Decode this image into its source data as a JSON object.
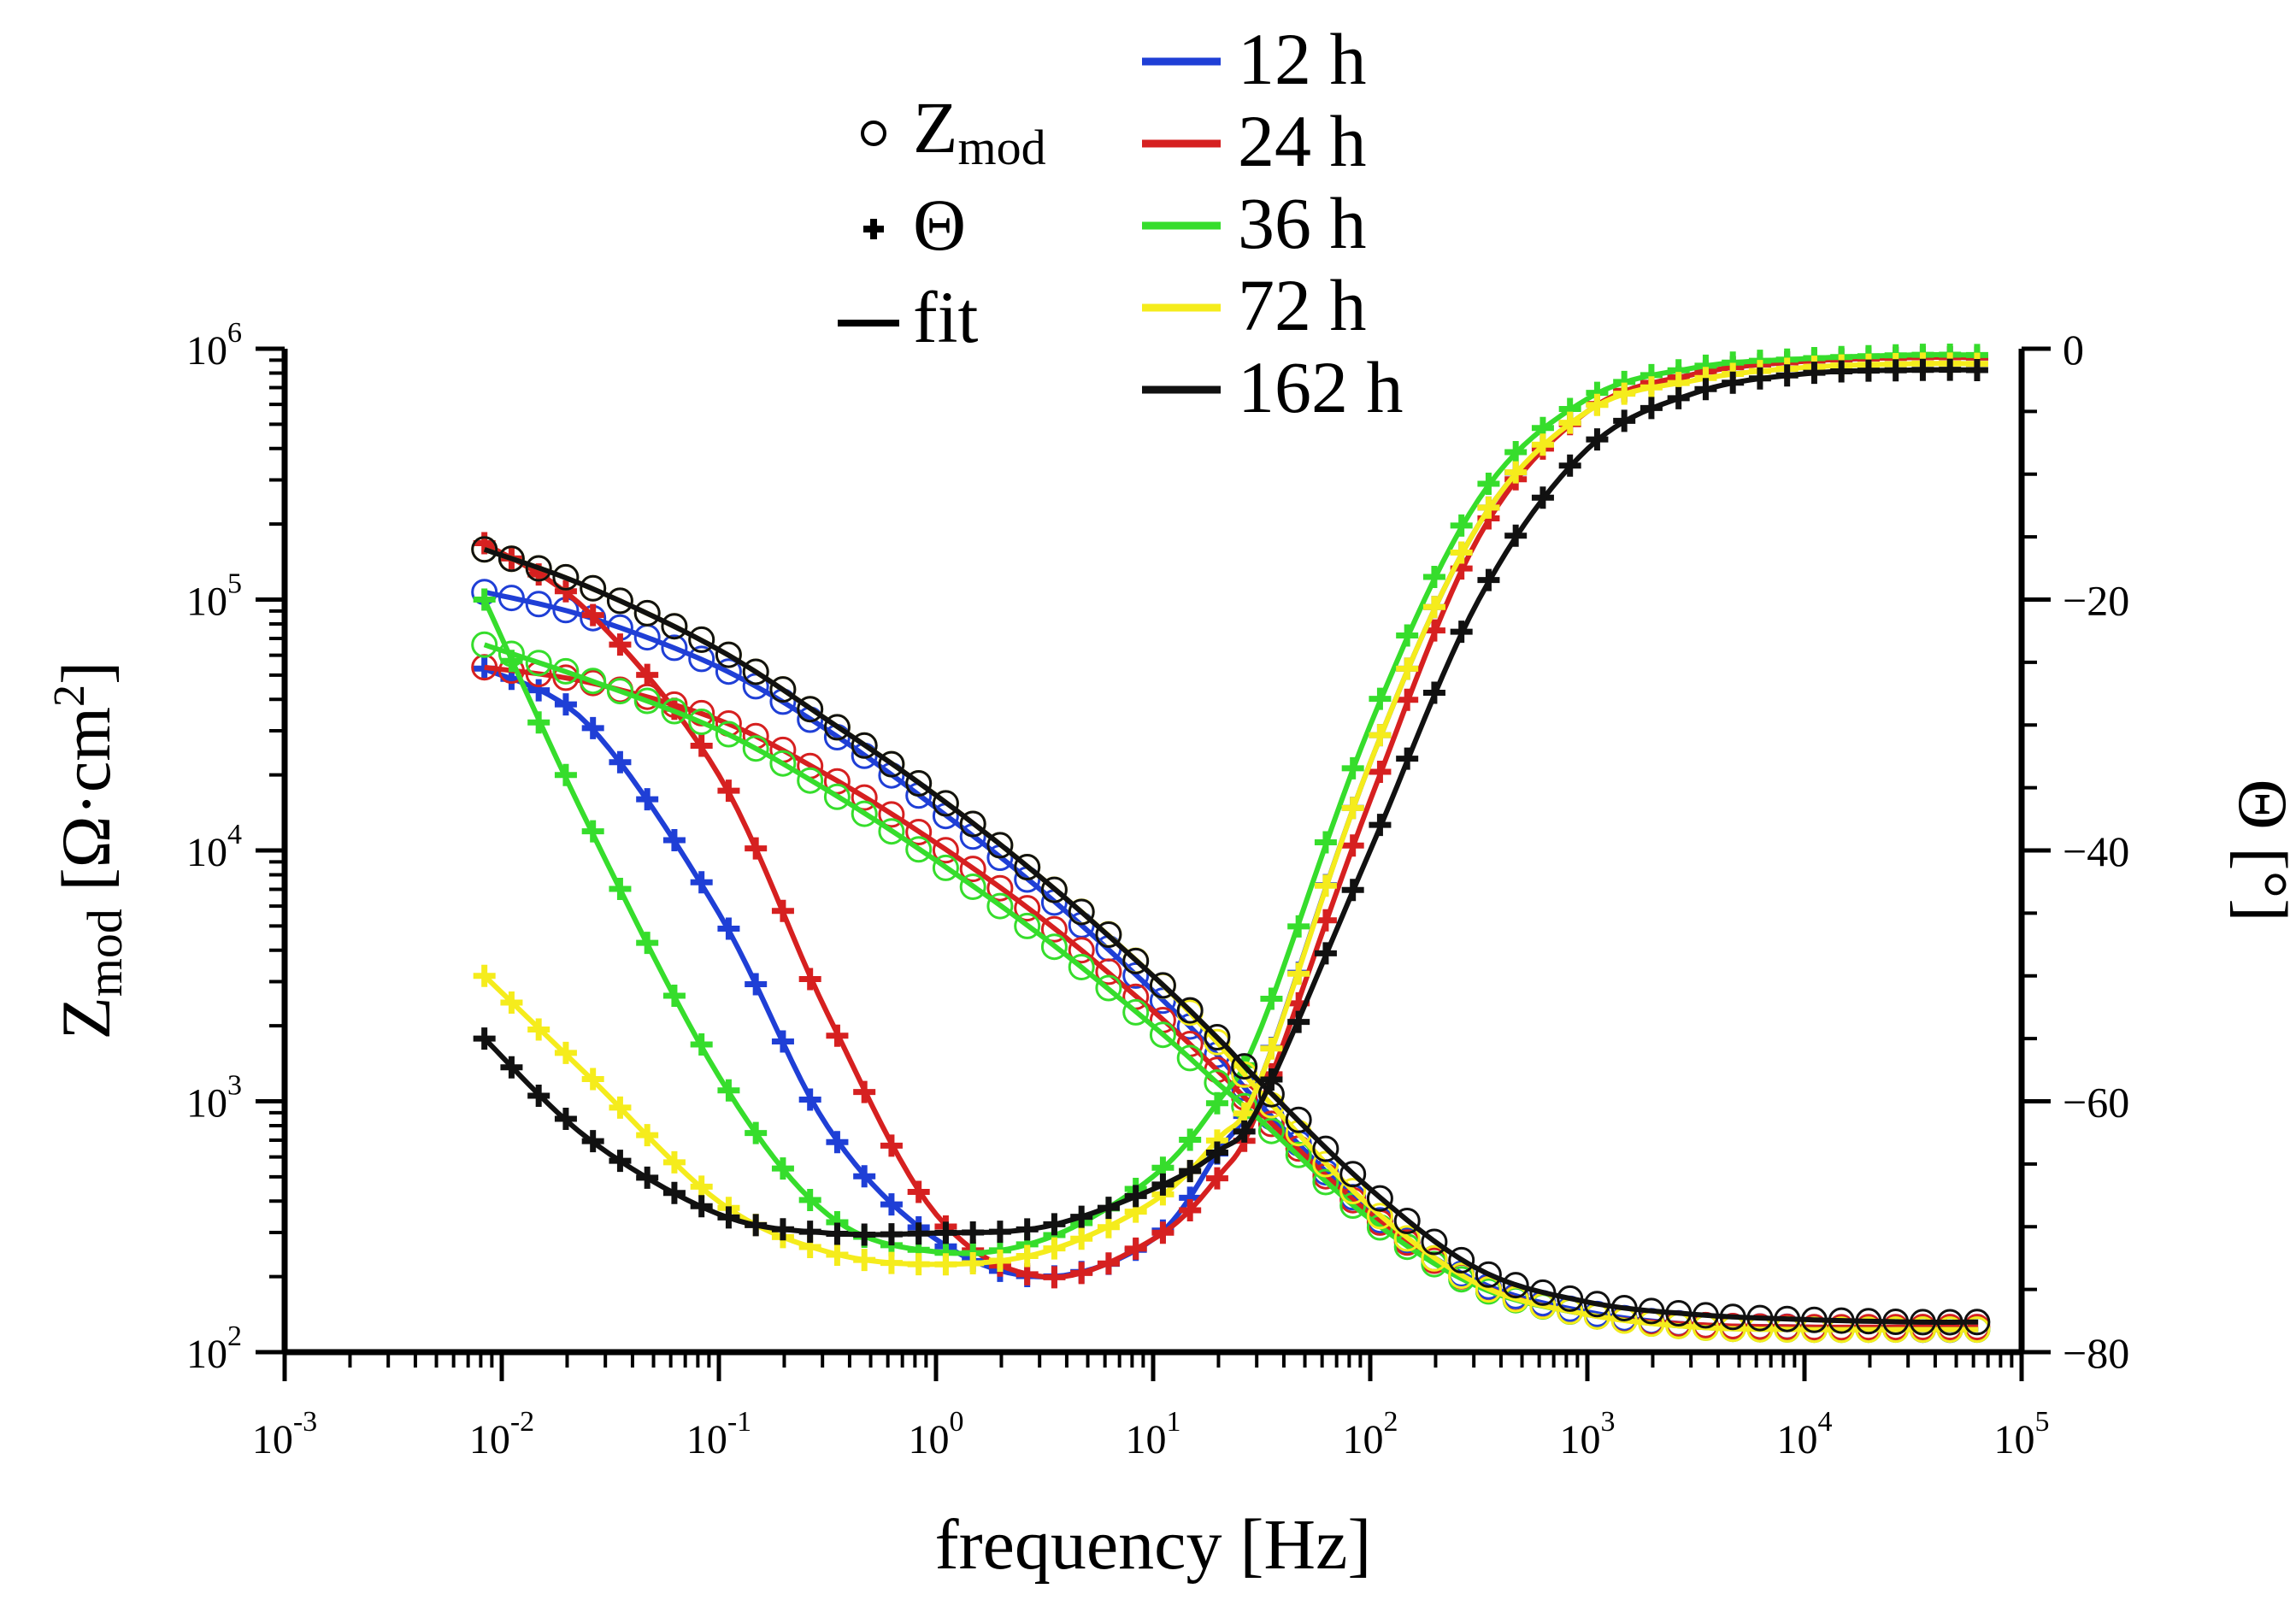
{
  "chart_data": {
    "type": "line",
    "title": "",
    "xlabel": "frequency [Hz]",
    "ylabel_left": {
      "base": "Z",
      "sub": "mod",
      "unit_open": " [Ω·cm",
      "unit_sup": "2",
      "unit_close": "]"
    },
    "ylabel_right": "Θ [°]",
    "x_scale": "log",
    "xlim_log10": [
      -3,
      5
    ],
    "ylim_left_log10": [
      2,
      6
    ],
    "ylim_right": [
      -80,
      0
    ],
    "x_ticks": [
      {
        "exp": "-3",
        "value": -3
      },
      {
        "exp": "-2",
        "value": -2
      },
      {
        "exp": "-1",
        "value": -1
      },
      {
        "exp": "0",
        "value": 0
      },
      {
        "exp": "1",
        "value": 1
      },
      {
        "exp": "2",
        "value": 2
      },
      {
        "exp": "3",
        "value": 3
      },
      {
        "exp": "4",
        "value": 4
      },
      {
        "exp": "5",
        "value": 5
      }
    ],
    "y_left_ticks": [
      {
        "exp": "2",
        "value": 2
      },
      {
        "exp": "3",
        "value": 3
      },
      {
        "exp": "4",
        "value": 4
      },
      {
        "exp": "5",
        "value": 5
      },
      {
        "exp": "6",
        "value": 6
      }
    ],
    "y_right_ticks": [
      {
        "label": "0",
        "value": 0
      },
      {
        "label": "−20",
        "value": -20
      },
      {
        "label": "−40",
        "value": -40
      },
      {
        "label": "−60",
        "value": -60
      },
      {
        "label": "−80",
        "value": -80
      }
    ],
    "legend_markers": [
      {
        "symbol": "○",
        "label": "Z",
        "sub": "mod"
      },
      {
        "symbol": "+",
        "label": "Θ",
        "sub": ""
      },
      {
        "symbol": "—",
        "label": "fit",
        "sub": ""
      }
    ],
    "series": [
      {
        "name": "12 h",
        "color": "#1f3fd6",
        "logf": [
          -2.08,
          -1.6,
          -1.0,
          -0.5,
          0.0,
          0.5,
          1.0,
          1.3,
          1.5,
          2.0,
          2.5,
          3.0,
          3.5,
          4.0,
          4.5,
          4.8
        ],
        "logZ": [
          5.03,
          4.93,
          4.73,
          4.48,
          4.17,
          3.83,
          3.44,
          3.18,
          2.98,
          2.56,
          2.28,
          2.16,
          2.11,
          2.1,
          2.09,
          2.09
        ],
        "theta": [
          -25.5,
          -30,
          -45,
          -62,
          -71,
          -74,
          -71,
          -64,
          -58,
          -33,
          -14,
          -5,
          -2,
          -1,
          -0.7,
          -0.7
        ]
      },
      {
        "name": "24 h",
        "color": "#d62020",
        "logf": [
          -2.08,
          -1.6,
          -1.0,
          -0.5,
          0.0,
          0.5,
          1.0,
          1.3,
          1.5,
          2.0,
          2.5,
          3.0,
          3.5,
          4.0,
          4.5,
          4.8
        ],
        "logZ": [
          4.73,
          4.67,
          4.52,
          4.3,
          4.03,
          3.72,
          3.36,
          3.12,
          2.95,
          2.55,
          2.27,
          2.15,
          2.11,
          2.1,
          2.1,
          2.1
        ],
        "theta": [
          -15.5,
          -21,
          -34,
          -53,
          -69,
          -74,
          -71,
          -66,
          -60,
          -36,
          -15,
          -5,
          -2,
          -1,
          -0.7,
          -0.7
        ]
      },
      {
        "name": "36 h",
        "color": "#36dd2c",
        "logf": [
          -2.08,
          -1.6,
          -1.0,
          -0.5,
          0.0,
          0.5,
          1.0,
          1.3,
          1.5,
          2.0,
          2.5,
          3.0,
          3.5,
          4.0,
          4.5,
          4.8
        ],
        "logZ": [
          4.82,
          4.68,
          4.48,
          4.24,
          3.96,
          3.65,
          3.3,
          3.07,
          2.92,
          2.53,
          2.26,
          2.15,
          2.1,
          2.09,
          2.09,
          2.09
        ],
        "theta": [
          -20,
          -38,
          -58,
          -69,
          -72,
          -71,
          -66,
          -60,
          -54,
          -30,
          -12,
          -4,
          -1.5,
          -0.8,
          -0.5,
          -0.5
        ]
      },
      {
        "name": "72 h",
        "color": "#f5ec1c",
        "logf": [
          -2.08,
          -1.6,
          -1.0,
          -0.5,
          0.0,
          0.5,
          1.0,
          1.3,
          1.5,
          2.0,
          2.5,
          3.0,
          3.5,
          4.0,
          4.5,
          4.8
        ],
        "logZ": [
          5.2,
          5.05,
          4.8,
          4.52,
          4.22,
          3.88,
          3.5,
          3.23,
          3.03,
          2.58,
          2.27,
          2.15,
          2.1,
          2.09,
          2.09,
          2.09
        ],
        "theta": [
          -50,
          -58,
          -68,
          -72,
          -73,
          -72,
          -68,
          -63,
          -58,
          -33,
          -14,
          -5,
          -2.5,
          -1.5,
          -1.2,
          -1.2
        ]
      },
      {
        "name": "162 h",
        "color": "#111111",
        "logf": [
          -2.08,
          -1.6,
          -1.0,
          -0.5,
          0.0,
          0.5,
          1.0,
          1.3,
          1.5,
          2.0,
          2.5,
          3.0,
          3.5,
          4.0,
          4.5,
          4.8
        ],
        "logZ": [
          5.2,
          5.05,
          4.8,
          4.52,
          4.22,
          3.88,
          3.5,
          3.25,
          3.07,
          2.65,
          2.33,
          2.2,
          2.15,
          2.13,
          2.12,
          2.12
        ],
        "theta": [
          -55,
          -63,
          -69,
          -70.5,
          -70.5,
          -70,
          -67,
          -64,
          -60,
          -40,
          -20,
          -8,
          -3.5,
          -2,
          -1.7,
          -1.7
        ]
      }
    ]
  }
}
